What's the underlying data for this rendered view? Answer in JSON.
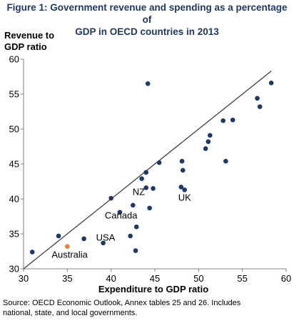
{
  "title": {
    "line1": "Figure 1: Government revenue and spending as a percentage of",
    "line2": "GDP in OECD countries in 2013"
  },
  "source_note": {
    "line1": "Source: OECD Economic Outlook, Annex tables 25 and 26. Includes",
    "line2": "national, state, and local governments."
  },
  "colors": {
    "point": "#1f3864",
    "highlight": "#ed7d31",
    "line": "#404040",
    "axis": "#808080"
  },
  "chart_data": {
    "type": "scatter",
    "title": "Figure 1: Government revenue and spending as a percentage of GDP in OECD countries in 2013",
    "xlabel": "Expenditure to GDP ratio",
    "ylabel": "Revenue to GDP ratio",
    "ylabel_lines": [
      "Revenue to",
      "GDP ratio"
    ],
    "xlim": [
      30,
      60
    ],
    "ylim": [
      30,
      60
    ],
    "xticks": [
      30,
      35,
      40,
      45,
      50,
      55,
      60
    ],
    "yticks": [
      30,
      35,
      40,
      45,
      50,
      55,
      60
    ],
    "grid": false,
    "reference_line": {
      "from": [
        30,
        30
      ],
      "to": [
        58.3,
        58.3
      ]
    },
    "points": [
      {
        "x": 31.0,
        "y": 32.4
      },
      {
        "x": 34.0,
        "y": 34.7
      },
      {
        "x": 35.0,
        "y": 33.2,
        "highlight": true
      },
      {
        "x": 36.9,
        "y": 34.3
      },
      {
        "x": 39.1,
        "y": 33.7
      },
      {
        "x": 40.0,
        "y": 40.1
      },
      {
        "x": 41.0,
        "y": 38.1
      },
      {
        "x": 42.2,
        "y": 34.7
      },
      {
        "x": 42.5,
        "y": 39.1
      },
      {
        "x": 42.8,
        "y": 32.6
      },
      {
        "x": 42.9,
        "y": 36.0
      },
      {
        "x": 43.5,
        "y": 42.9
      },
      {
        "x": 44.0,
        "y": 43.8
      },
      {
        "x": 44.0,
        "y": 41.6
      },
      {
        "x": 44.2,
        "y": 56.5
      },
      {
        "x": 44.4,
        "y": 38.7
      },
      {
        "x": 44.8,
        "y": 41.5
      },
      {
        "x": 45.5,
        "y": 45.2
      },
      {
        "x": 48.0,
        "y": 41.7
      },
      {
        "x": 48.1,
        "y": 45.4
      },
      {
        "x": 48.2,
        "y": 44.1
      },
      {
        "x": 48.4,
        "y": 41.3
      },
      {
        "x": 50.8,
        "y": 47.2
      },
      {
        "x": 51.1,
        "y": 48.2
      },
      {
        "x": 51.3,
        "y": 49.1
      },
      {
        "x": 52.8,
        "y": 51.2
      },
      {
        "x": 53.1,
        "y": 45.4
      },
      {
        "x": 53.9,
        "y": 51.3
      },
      {
        "x": 56.7,
        "y": 54.4
      },
      {
        "x": 57.0,
        "y": 53.2
      },
      {
        "x": 58.3,
        "y": 56.6
      }
    ],
    "annotations": [
      {
        "text": "Australia",
        "x": 35.0,
        "y": 33.2
      },
      {
        "text": "USA",
        "x": 39.1,
        "y": 33.7
      },
      {
        "text": "Canada",
        "x": 41.0,
        "y": 38.1
      },
      {
        "text": "NZ",
        "x": 44.0,
        "y": 41.6
      },
      {
        "text": "UK",
        "x": 48.4,
        "y": 41.3
      }
    ]
  }
}
